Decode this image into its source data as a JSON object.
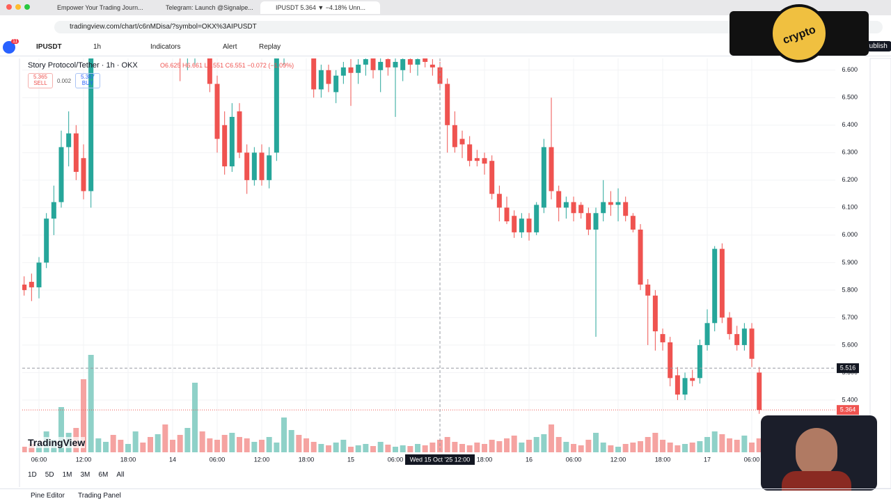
{
  "browser": {
    "tabs": [
      "Empower Your Trading Journ...",
      "Telegram: Launch @Signalpe...",
      "IPUSDT 5.364 ▼ −4.18% Unn..."
    ],
    "url": "tradingview.com/chart/c6nMDisa/?symbol=OKX%3AIPUSDT",
    "badge": "11"
  },
  "toolbar": {
    "symbol": "IPUSDT",
    "interval": "1h",
    "indicators": "Indicators",
    "alert": "Alert",
    "replay": "Replay",
    "publish": "Publish"
  },
  "legend": {
    "ohlc": "O6.625 H6.661 L6.551 C6.551 −0.072 (−1.09%)",
    "sell_price": "5.365",
    "sell": "SELL",
    "spread": "0.002",
    "buy_price": "5.367",
    "buy": "BUY"
  },
  "ranges": [
    "1D",
    "5D",
    "1M",
    "3M",
    "6M",
    "All"
  ],
  "footer": [
    "Pine Editor",
    "Trading Panel"
  ],
  "logo": "TradingView",
  "watermark": "crypto",
  "chart_data": {
    "type": "candlestick",
    "title": "Story Protocol/Tether · 1h · OKX",
    "categories": [
      null,
      null,
      "06:00",
      null,
      null,
      null,
      null,
      null,
      "12:00",
      null,
      null,
      null,
      null,
      null,
      "18:00",
      null,
      null,
      null,
      null,
      null,
      "14",
      null,
      null,
      null,
      null,
      null,
      "06:00",
      null,
      null,
      null,
      null,
      null,
      "12:00",
      null,
      null,
      null,
      null,
      null,
      "18:00",
      null,
      null,
      null,
      null,
      null,
      "15",
      null,
      null,
      null,
      null,
      null,
      "06:00",
      null,
      null,
      null,
      null,
      null,
      null,
      null,
      null,
      null,
      null,
      null,
      "18:00",
      null,
      null,
      null,
      null,
      null,
      "16",
      null,
      null,
      null,
      null,
      null,
      "06:00",
      null,
      null,
      null,
      null,
      null,
      "12:00",
      null,
      null,
      null,
      null,
      null,
      "18:00",
      null,
      null,
      null,
      null,
      null,
      "17",
      null,
      null,
      null,
      null,
      null,
      "06:00",
      null
    ],
    "open": [
      5.82,
      5.83,
      5.81,
      5.9,
      6.06,
      6.12,
      6.32,
      6.37,
      6.28,
      6.16,
      6.7,
      6.76,
      6.8,
      6.78,
      6.74,
      6.77,
      6.82,
      6.79,
      6.75,
      6.78,
      6.74,
      6.72,
      6.66,
      6.7,
      6.72,
      6.7,
      6.55,
      6.4,
      6.25,
      6.45,
      6.3,
      6.2,
      6.3,
      6.2,
      6.3,
      6.66,
      6.72,
      6.74,
      6.7,
      6.68,
      6.53,
      6.6,
      6.52,
      6.58,
      6.61,
      6.59,
      6.62,
      6.65,
      6.6,
      6.64,
      6.61,
      6.6,
      6.64,
      6.62,
      6.65,
      6.62,
      6.61,
      6.55,
      6.4,
      6.35,
      6.33,
      6.28,
      6.28,
      6.27,
      6.15,
      6.1,
      6.07,
      6.01,
      6.06,
      6.01,
      6.1,
      6.32,
      6.16,
      6.1,
      6.12,
      6.11,
      6.08,
      6.02,
      6.08,
      6.12,
      6.11,
      6.12,
      6.07,
      6.02,
      5.82,
      5.78,
      5.64,
      5.61,
      5.49,
      5.42,
      5.48,
      5.48,
      5.6,
      5.68,
      5.95,
      5.7,
      5.64,
      5.6,
      5.66,
      5.5
    ],
    "high": [
      5.85,
      5.86,
      5.92,
      6.08,
      6.18,
      6.38,
      6.45,
      6.4,
      6.33,
      6.72,
      6.8,
      6.84,
      6.86,
      6.82,
      6.8,
      6.85,
      6.88,
      6.84,
      6.8,
      6.82,
      6.78,
      6.76,
      6.72,
      6.74,
      6.76,
      6.74,
      6.58,
      6.45,
      6.48,
      6.48,
      6.33,
      6.32,
      6.33,
      6.32,
      6.7,
      6.75,
      6.78,
      6.78,
      6.74,
      6.7,
      6.62,
      6.62,
      6.6,
      6.63,
      6.64,
      6.64,
      6.66,
      6.68,
      6.66,
      6.67,
      6.66,
      6.66,
      6.67,
      6.66,
      6.68,
      6.64,
      6.63,
      6.57,
      6.45,
      6.38,
      6.36,
      6.31,
      6.3,
      6.29,
      6.18,
      6.14,
      6.09,
      6.08,
      6.08,
      6.12,
      6.35,
      6.5,
      6.18,
      6.14,
      6.14,
      6.12,
      6.1,
      6.1,
      6.2,
      6.16,
      6.17,
      6.14,
      6.08,
      6.04,
      5.84,
      5.8,
      5.66,
      5.63,
      5.52,
      5.5,
      5.51,
      5.62,
      5.73,
      5.96,
      5.97,
      5.72,
      5.67,
      5.68,
      5.68,
      5.52
    ],
    "low": [
      5.78,
      5.76,
      5.77,
      5.88,
      6.0,
      6.1,
      6.25,
      6.2,
      6.13,
      6.1,
      6.66,
      6.72,
      6.74,
      6.7,
      6.7,
      6.73,
      6.76,
      6.72,
      6.7,
      6.72,
      6.68,
      6.56,
      6.6,
      6.62,
      6.66,
      6.52,
      6.3,
      6.22,
      6.23,
      6.28,
      6.15,
      6.18,
      6.18,
      6.17,
      6.27,
      6.62,
      6.68,
      6.66,
      6.65,
      6.5,
      6.5,
      6.52,
      6.48,
      6.55,
      6.47,
      6.55,
      6.58,
      6.57,
      6.52,
      6.58,
      6.43,
      6.56,
      6.59,
      6.58,
      6.61,
      6.58,
      6.53,
      6.3,
      6.3,
      6.28,
      6.25,
      6.25,
      6.22,
      6.13,
      6.05,
      6.04,
      5.99,
      5.99,
      5.98,
      6.0,
      6.08,
      6.13,
      6.05,
      6.06,
      6.05,
      6.06,
      6.0,
      5.63,
      6.05,
      6.07,
      6.05,
      6.05,
      6.01,
      5.8,
      5.6,
      5.58,
      5.58,
      5.45,
      5.4,
      5.4,
      5.45,
      5.46,
      5.58,
      5.65,
      5.68,
      5.62,
      5.58,
      5.58,
      5.52,
      5.35
    ],
    "close": [
      5.8,
      5.81,
      5.9,
      6.06,
      6.12,
      6.32,
      6.37,
      6.23,
      6.16,
      6.7,
      6.76,
      6.8,
      6.78,
      6.74,
      6.77,
      6.82,
      6.79,
      6.75,
      6.78,
      6.74,
      6.72,
      6.66,
      6.7,
      6.72,
      6.7,
      6.55,
      6.35,
      6.25,
      6.43,
      6.3,
      6.2,
      6.3,
      6.2,
      6.29,
      6.66,
      6.72,
      6.74,
      6.7,
      6.68,
      6.53,
      6.6,
      6.55,
      6.58,
      6.61,
      6.59,
      6.62,
      6.64,
      6.6,
      6.63,
      6.61,
      6.63,
      6.64,
      6.62,
      6.64,
      6.63,
      6.61,
      6.55,
      6.4,
      6.32,
      6.33,
      6.27,
      6.27,
      6.26,
      6.15,
      6.1,
      6.05,
      6.01,
      6.06,
      6.01,
      6.11,
      6.32,
      6.16,
      6.1,
      6.12,
      6.08,
      6.08,
      6.02,
      6.08,
      6.12,
      6.11,
      6.12,
      6.07,
      6.02,
      5.82,
      5.78,
      5.65,
      5.61,
      5.48,
      5.42,
      5.48,
      5.47,
      5.6,
      5.68,
      5.95,
      5.7,
      5.64,
      5.6,
      5.66,
      5.55,
      5.364
    ],
    "volume": [
      8,
      12,
      10,
      30,
      18,
      65,
      28,
      35,
      105,
      140,
      20,
      15,
      25,
      18,
      12,
      30,
      14,
      22,
      26,
      40,
      18,
      25,
      35,
      100,
      30,
      20,
      18,
      25,
      28,
      22,
      20,
      15,
      18,
      22,
      14,
      50,
      32,
      25,
      20,
      15,
      12,
      10,
      14,
      18,
      8,
      10,
      12,
      9,
      15,
      11,
      8,
      10,
      9,
      12,
      10,
      14,
      18,
      22,
      15,
      12,
      10,
      14,
      12,
      18,
      16,
      20,
      24,
      14,
      18,
      22,
      26,
      40,
      22,
      15,
      12,
      10,
      18,
      28,
      14,
      10,
      8,
      12,
      14,
      16,
      22,
      28,
      18,
      14,
      10,
      12,
      14,
      16,
      22,
      30,
      26,
      20,
      18,
      24,
      14,
      20
    ],
    "up_color": "#26a69a",
    "down_color": "#ef5350",
    "up_volume_color": "#8fd1c8",
    "down_volume_color": "#f5a3a1",
    "ylim": [
      5.21,
      6.64
    ],
    "yticks": [
      {
        "value": 5.4,
        "label": "5.400"
      },
      {
        "value": 5.5,
        "label": "5.500"
      },
      {
        "value": 5.6,
        "label": "5.600"
      },
      {
        "value": 5.7,
        "label": "5.700"
      },
      {
        "value": 5.8,
        "label": "5.800"
      },
      {
        "value": 5.9,
        "label": "5.900"
      },
      {
        "value": 6.0,
        "label": "6.000"
      },
      {
        "value": 6.1,
        "label": "6.100"
      },
      {
        "value": 6.2,
        "label": "6.200"
      },
      {
        "value": 6.3,
        "label": "6.300"
      },
      {
        "value": 6.4,
        "label": "6.400"
      },
      {
        "value": 6.5,
        "label": "6.500"
      },
      {
        "value": 6.6,
        "label": "6.600"
      }
    ],
    "grid": true,
    "last_price": 5.364,
    "crosshair_price": 5.516,
    "crosshair_time": "Wed 15 Oct '25 12:00"
  }
}
